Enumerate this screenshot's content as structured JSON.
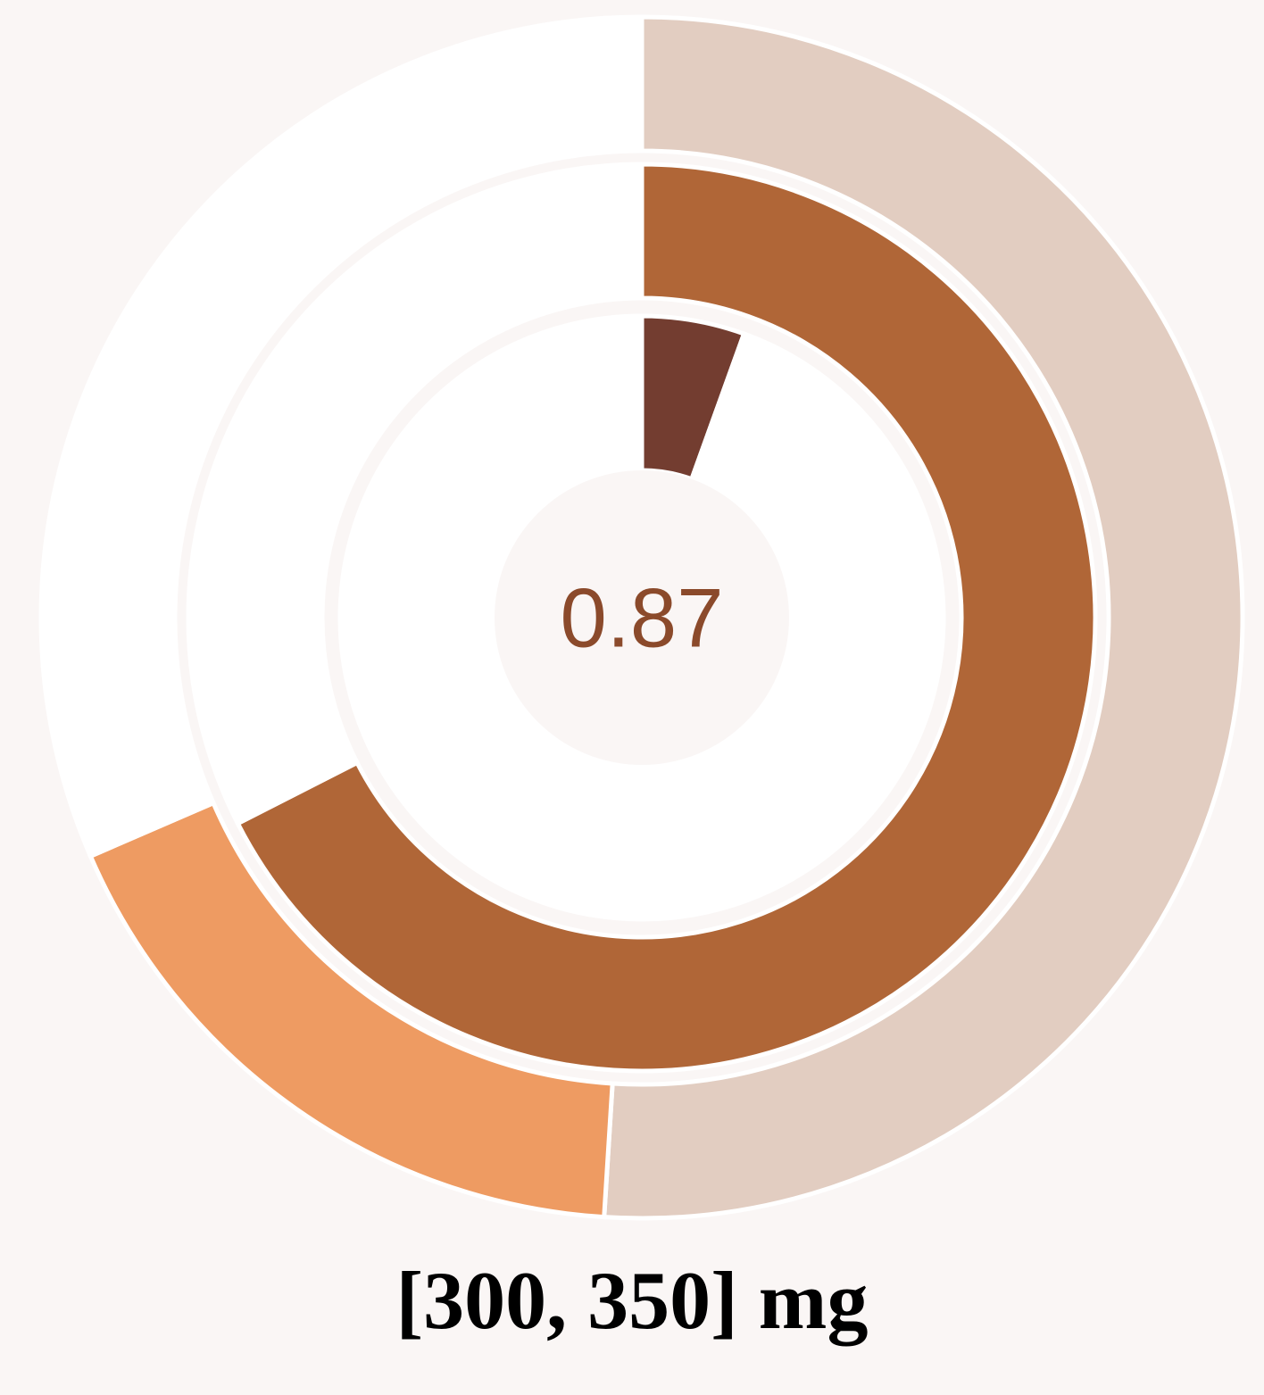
{
  "chart_data": {
    "type": "pie",
    "variant": "multi-ring radial progress",
    "center_value": "0.87",
    "label": "[300, 350] mg",
    "rings": [
      {
        "ring": "outer",
        "segments": [
          {
            "value": 0.51,
            "color": "#e2cdc1"
          },
          {
            "value": 0.175,
            "color": "#ee9b62"
          },
          {
            "value": 0.315,
            "color": "#ffffff"
          }
        ]
      },
      {
        "ring": "middle",
        "segments": [
          {
            "value": 0.675,
            "color": "#b06637"
          },
          {
            "value": 0.325,
            "color": "#ffffff"
          }
        ]
      },
      {
        "ring": "inner",
        "segments": [
          {
            "value": 0.055,
            "color": "#733d30"
          },
          {
            "value": 0.945,
            "color": "#ffffff"
          }
        ]
      }
    ]
  },
  "colors": {
    "background": "#faf6f5",
    "center_disc": "#faf6f5",
    "center_text": "#8b4a2b",
    "separator": "#ffffff"
  }
}
